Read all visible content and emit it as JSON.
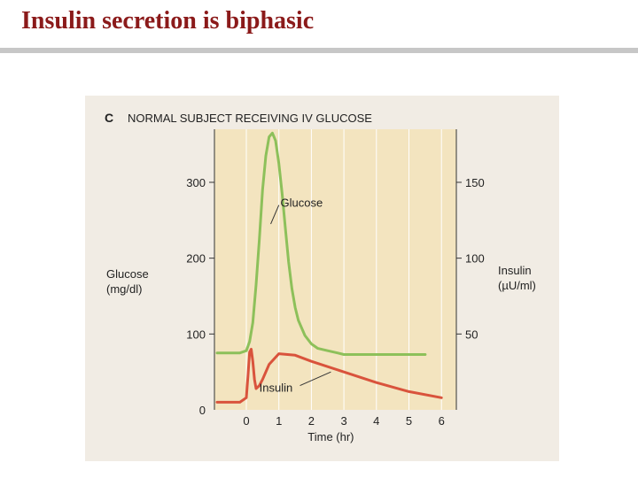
{
  "slide": {
    "title": "Insulin secretion is biphasic"
  },
  "colors": {
    "title": "#8b1a1a",
    "plot_bg": "#f3e4bf",
    "glucose": "#8dc05a",
    "insulin": "#d9533c",
    "grid": "#ffffff"
  },
  "chart_data": {
    "type": "line",
    "panel_letter": "C",
    "title": "NORMAL SUBJECT RECEIVING IV GLUCOSE",
    "xlabel": "Time (hr)",
    "ylabel_left": [
      "Glucose",
      "(mg/dl)"
    ],
    "ylabel_right": [
      "Insulin",
      "(µU/ml)"
    ],
    "x_ticks": [
      0,
      1,
      2,
      3,
      4,
      5,
      6
    ],
    "y_left_ticks": [
      0,
      100,
      200,
      300
    ],
    "y_right_ticks": [
      50,
      100,
      150
    ],
    "xlim": [
      -1,
      6.5
    ],
    "ylim_left": [
      0,
      370
    ],
    "ylim_right": [
      0,
      185
    ],
    "grid": true,
    "series": [
      {
        "name": "Glucose",
        "axis": "left",
        "x": [
          -0.9,
          -0.2,
          0.0,
          0.1,
          0.2,
          0.3,
          0.4,
          0.5,
          0.6,
          0.7,
          0.8,
          0.9,
          1.0,
          1.1,
          1.2,
          1.3,
          1.4,
          1.5,
          1.6,
          1.8,
          2.0,
          2.2,
          2.5,
          2.8,
          3.0,
          4.0,
          5.0,
          5.5
        ],
        "y": [
          75,
          75,
          78,
          90,
          115,
          165,
          225,
          290,
          335,
          360,
          365,
          355,
          325,
          285,
          240,
          195,
          160,
          135,
          118,
          98,
          87,
          81,
          78,
          75,
          73,
          73,
          73,
          73
        ]
      },
      {
        "name": "Insulin",
        "axis": "right",
        "x": [
          -0.9,
          -0.2,
          0.0,
          0.05,
          0.1,
          0.15,
          0.2,
          0.25,
          0.3,
          0.4,
          0.5,
          0.7,
          1.0,
          1.5,
          2.0,
          3.0,
          4.0,
          5.0,
          6.0
        ],
        "y": [
          5,
          5,
          8,
          22,
          38,
          40,
          32,
          20,
          14,
          16,
          20,
          30,
          37,
          36,
          32,
          25,
          18,
          12,
          8
        ]
      }
    ],
    "annotations": [
      {
        "text": "Glucose",
        "series": "Glucose"
      },
      {
        "text": "Insulin",
        "series": "Insulin"
      }
    ]
  }
}
